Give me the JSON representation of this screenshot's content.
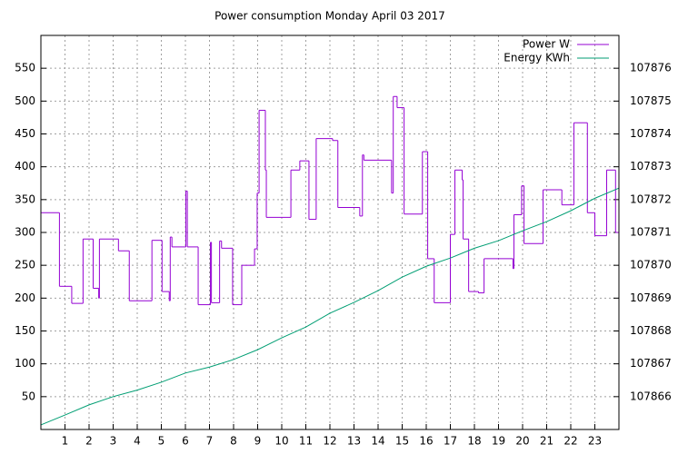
{
  "chart_data": {
    "type": "line",
    "title": "Power consumption Monday April 03 2017",
    "xlim": [
      0,
      24
    ],
    "xticks": [
      1,
      2,
      3,
      4,
      5,
      6,
      7,
      8,
      9,
      10,
      11,
      12,
      13,
      14,
      15,
      16,
      17,
      18,
      19,
      20,
      21,
      22,
      23
    ],
    "ylim": [
      0,
      600
    ],
    "yticks": [
      50,
      100,
      150,
      200,
      250,
      300,
      350,
      400,
      450,
      500,
      550
    ],
    "y2lim": [
      107865,
      107877
    ],
    "y2ticks": [
      107866,
      107867,
      107868,
      107869,
      107870,
      107871,
      107872,
      107873,
      107874,
      107875,
      107876
    ],
    "grid": true,
    "legend": "top-right",
    "series": [
      {
        "name": "Power W",
        "color": "#9400d3",
        "step": true,
        "x": [
          0,
          0.77,
          1.28,
          1.75,
          2.17,
          2.4,
          2.43,
          3.22,
          3.67,
          4.61,
          5.03,
          5.33,
          5.37,
          5.44,
          6.02,
          6.08,
          6.53,
          7.04,
          7.08,
          7.42,
          7.5,
          7.96,
          8.34,
          8.87,
          8.98,
          9.06,
          9.32,
          9.36,
          10.38,
          10.75,
          11.13,
          11.43,
          12.11,
          12.33,
          13.24,
          13.35,
          13.41,
          14.56,
          14.63,
          14.79,
          15.08,
          15.84,
          16.06,
          16.33,
          17.0,
          17.19,
          17.49,
          17.53,
          17.76,
          18.17,
          18.4,
          19.6,
          19.64,
          19.96,
          20.06,
          20.85,
          21.63,
          22.13,
          22.69,
          23.0,
          23.49,
          23.86
        ],
        "values": [
          330,
          218,
          192,
          290,
          215,
          200,
          290,
          272,
          196,
          288,
          210,
          196,
          293,
          278,
          363,
          278,
          190,
          285,
          193,
          287,
          276,
          190,
          250,
          275,
          360,
          486,
          395,
          323,
          395,
          409,
          320,
          443,
          440,
          338,
          325,
          418,
          410,
          360,
          507,
          490,
          328,
          423,
          260,
          193,
          297,
          395,
          380,
          290,
          210,
          208,
          260,
          245,
          327,
          371,
          283,
          365,
          342,
          467,
          330,
          295,
          395,
          300
        ]
      },
      {
        "name": "Energy KWh",
        "color": "#009e73",
        "axis": "y2",
        "x": [
          0,
          1,
          2,
          3,
          4,
          5,
          6,
          7,
          8,
          9,
          10,
          11,
          12,
          13,
          14,
          15,
          16,
          17,
          18,
          19,
          20,
          21,
          22,
          23,
          24
        ],
        "values": [
          107865.14,
          107865.44,
          107865.75,
          107866.0,
          107866.2,
          107866.44,
          107866.72,
          107866.9,
          107867.13,
          107867.43,
          107867.79,
          107868.12,
          107868.54,
          107868.87,
          107869.23,
          107869.64,
          107869.97,
          107870.22,
          107870.52,
          107870.75,
          107871.05,
          107871.33,
          107871.66,
          107872.04,
          107872.35
        ]
      }
    ]
  }
}
